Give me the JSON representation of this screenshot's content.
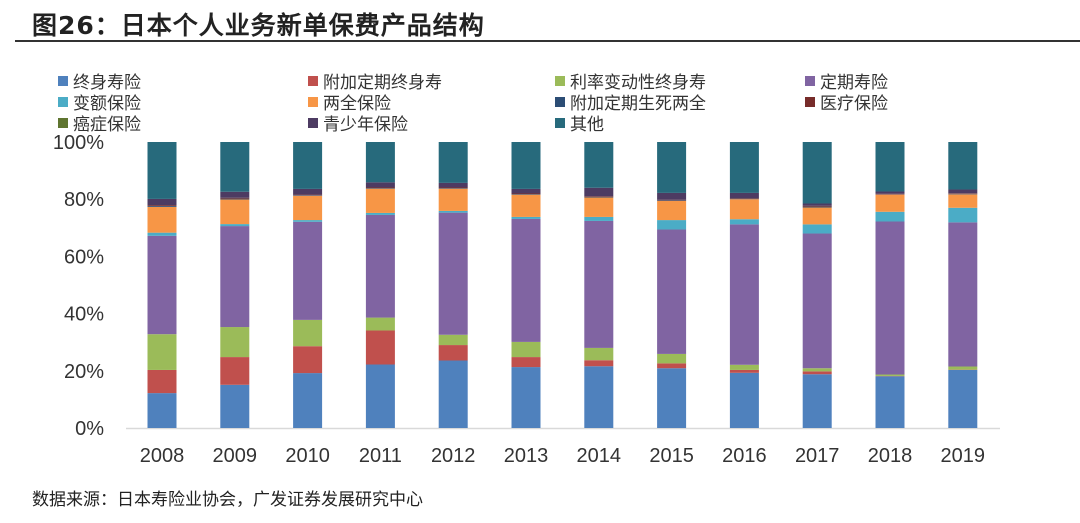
{
  "title": "图26：日本个人业务新单保费产品结构",
  "source": "数据来源：日本寿险业协会，广发证券发展研究中心",
  "chart_data": {
    "type": "bar",
    "stacked": true,
    "title": "图26：日本个人业务新单保费产品结构",
    "xlabel": "",
    "ylabel": "",
    "ylim": [
      0,
      100
    ],
    "yticks": [
      "0%",
      "20%",
      "40%",
      "60%",
      "80%",
      "100%"
    ],
    "grid": false,
    "legend_placement": "top",
    "categories": [
      "2008",
      "2009",
      "2010",
      "2011",
      "2012",
      "2013",
      "2014",
      "2015",
      "2016",
      "2017",
      "2018",
      "2019"
    ],
    "series": [
      {
        "name": "终身寿险",
        "color": "#4f81bd",
        "values": [
          12.2,
          15.1,
          19.2,
          22.2,
          23.6,
          21.3,
          21.6,
          20.9,
          19.3,
          18.8,
          18.1,
          20.3
        ]
      },
      {
        "name": "附加定期终身寿",
        "color": "#c0504d",
        "values": [
          8.1,
          9.7,
          9.4,
          11.9,
          5.4,
          3.5,
          2.1,
          1.7,
          1.0,
          1.0,
          0.1,
          0.1
        ]
      },
      {
        "name": "利率变动性终身寿",
        "color": "#9bbb59",
        "values": [
          12.5,
          10.5,
          9.2,
          4.5,
          3.6,
          5.3,
          4.3,
          3.3,
          1.8,
          1.1,
          0.5,
          1.1
        ]
      },
      {
        "name": "定期寿险",
        "color": "#8064a2",
        "values": [
          34.4,
          35.3,
          34.3,
          35.9,
          42.7,
          43.0,
          44.4,
          43.5,
          49.1,
          47.1,
          53.5,
          50.4
        ]
      },
      {
        "name": "变额保险",
        "color": "#4bacc6",
        "values": [
          1.1,
          0.7,
          0.6,
          0.7,
          0.6,
          0.7,
          1.4,
          3.3,
          1.8,
          3.2,
          3.4,
          5.1
        ]
      },
      {
        "name": "两全保险",
        "color": "#f79646",
        "values": [
          9.0,
          8.6,
          8.5,
          8.5,
          7.8,
          7.8,
          6.8,
          6.7,
          7.0,
          5.9,
          6.0,
          4.7
        ]
      },
      {
        "name": "附加定期生死两全",
        "color": "#2c4d75",
        "values": [
          0.3,
          0.3,
          0.2,
          0.2,
          0.2,
          0.2,
          0.2,
          0.2,
          0.2,
          0.3,
          0.1,
          0.2
        ]
      },
      {
        "name": "医疗保险",
        "color": "#772c2a",
        "values": [
          0.3,
          0.3,
          0.2,
          0.2,
          0.2,
          0.2,
          0.2,
          0.2,
          0.2,
          0.3,
          0.2,
          0.2
        ]
      },
      {
        "name": "癌症保险",
        "color": "#5f7530",
        "values": [
          0,
          0,
          0,
          0,
          0,
          0,
          0,
          0,
          0,
          0,
          0,
          0
        ]
      },
      {
        "name": "青少年保险",
        "color": "#4d3b62",
        "values": [
          2.2,
          2.1,
          2.0,
          1.8,
          1.6,
          1.6,
          3.0,
          2.4,
          1.8,
          0.8,
          0.8,
          1.3
        ]
      },
      {
        "name": "其他",
        "color": "#276a7c",
        "values": [
          19.9,
          17.4,
          16.4,
          14.1,
          14.3,
          16.4,
          16.0,
          17.8,
          17.8,
          21.5,
          17.3,
          16.6
        ]
      }
    ]
  }
}
